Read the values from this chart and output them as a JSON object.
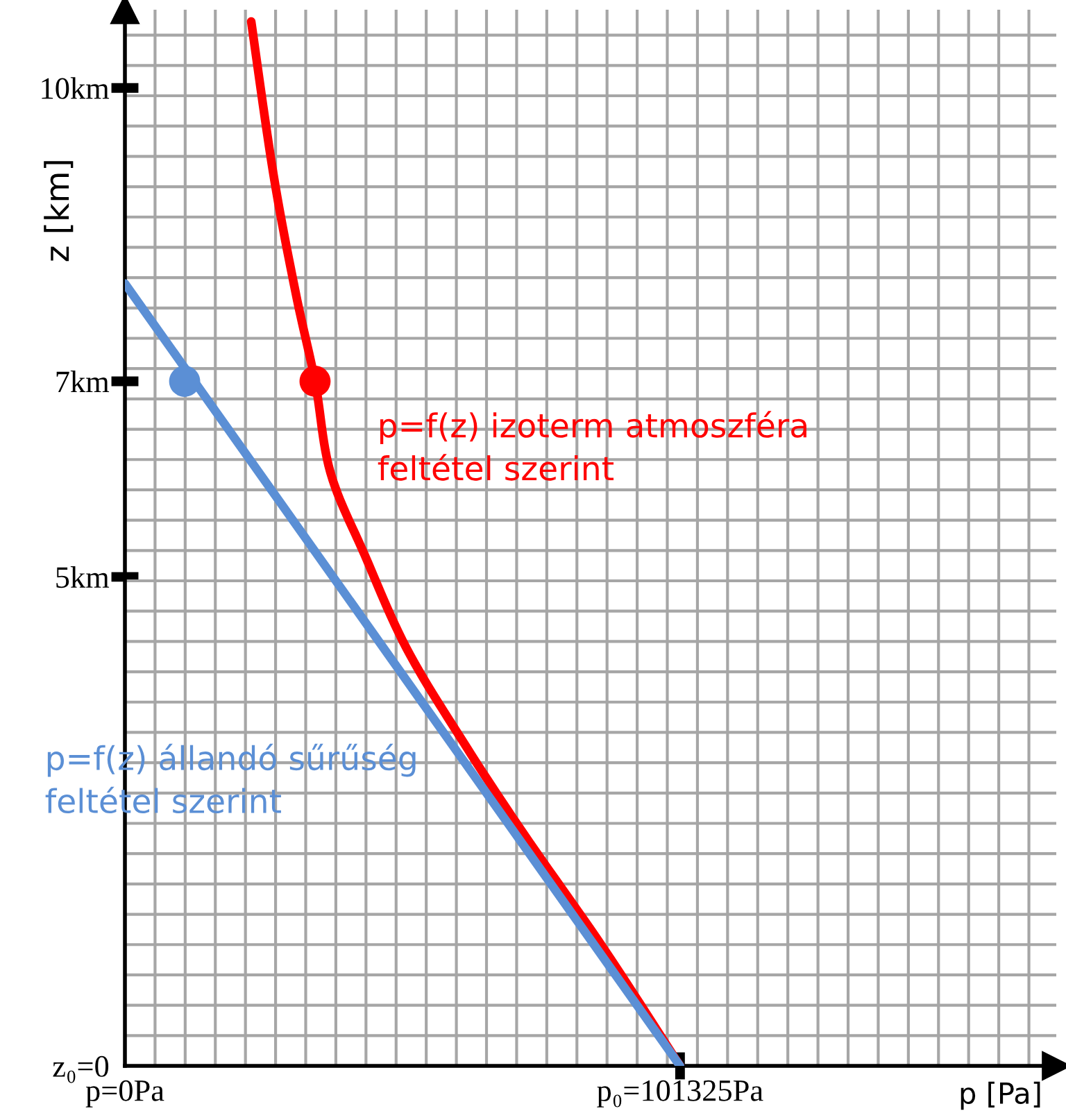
{
  "chart_data": {
    "type": "line",
    "xlabel": "p [Pa]",
    "ylabel": "z [km]",
    "xlim": [
      0,
      170000
    ],
    "ylim": [
      0,
      10.8
    ],
    "xticks": [
      {
        "value": 0,
        "label": "p=0Pa"
      },
      {
        "value": 101325,
        "label": "p₀=101325Pa"
      },
      {
        "value": 5500,
        "label": null
      },
      {
        "value": 11000,
        "label": null
      },
      {
        "value": 16500,
        "label": null
      },
      {
        "value": 22000,
        "label": null
      },
      {
        "value": 27500,
        "label": null
      },
      {
        "value": 33000,
        "label": null
      },
      {
        "value": 38500,
        "label": null
      },
      {
        "value": 44000,
        "label": null
      },
      {
        "value": 49500,
        "label": null
      },
      {
        "value": 55000,
        "label": null
      },
      {
        "value": 60500,
        "label": null
      },
      {
        "value": 66000,
        "label": null
      },
      {
        "value": 71500,
        "label": null
      },
      {
        "value": 77000,
        "label": null
      },
      {
        "value": 82500,
        "label": null
      },
      {
        "value": 88000,
        "label": null
      },
      {
        "value": 93500,
        "label": null
      },
      {
        "value": 99000,
        "label": null
      },
      {
        "value": 104500,
        "label": null
      },
      {
        "value": 110000,
        "label": null
      },
      {
        "value": 115500,
        "label": null
      },
      {
        "value": 121000,
        "label": null
      },
      {
        "value": 126500,
        "label": null
      },
      {
        "value": 132000,
        "label": null
      },
      {
        "value": 137500,
        "label": null
      },
      {
        "value": 143000,
        "label": null
      },
      {
        "value": 148500,
        "label": null
      },
      {
        "value": 154000,
        "label": null
      },
      {
        "value": 159500,
        "label": null
      },
      {
        "value": 165000,
        "label": null
      }
    ],
    "yticks": [
      {
        "value": 0,
        "label": "z₀=0"
      },
      {
        "value": 5,
        "label": "5km"
      },
      {
        "value": 7,
        "label": "7km"
      },
      {
        "value": 10,
        "label": "10km"
      },
      {
        "value": 0.31,
        "label": null
      },
      {
        "value": 0.62,
        "label": null
      },
      {
        "value": 0.93,
        "label": null
      },
      {
        "value": 1.24,
        "label": null
      },
      {
        "value": 1.55,
        "label": null
      },
      {
        "value": 1.86,
        "label": null
      },
      {
        "value": 2.17,
        "label": null
      },
      {
        "value": 2.48,
        "label": null
      },
      {
        "value": 2.79,
        "label": null
      },
      {
        "value": 3.1,
        "label": null
      },
      {
        "value": 3.41,
        "label": null
      },
      {
        "value": 3.72,
        "label": null
      },
      {
        "value": 4.03,
        "label": null
      },
      {
        "value": 4.34,
        "label": null
      },
      {
        "value": 4.65,
        "label": null
      },
      {
        "value": 4.96,
        "label": null
      },
      {
        "value": 5.27,
        "label": null
      },
      {
        "value": 5.58,
        "label": null
      },
      {
        "value": 5.89,
        "label": null
      },
      {
        "value": 6.2,
        "label": null
      },
      {
        "value": 6.51,
        "label": null
      },
      {
        "value": 6.82,
        "label": null
      },
      {
        "value": 7.13,
        "label": null
      },
      {
        "value": 7.44,
        "label": null
      },
      {
        "value": 7.75,
        "label": null
      },
      {
        "value": 8.06,
        "label": null
      },
      {
        "value": 8.37,
        "label": null
      },
      {
        "value": 8.68,
        "label": null
      },
      {
        "value": 8.99,
        "label": null
      },
      {
        "value": 9.3,
        "label": null
      },
      {
        "value": 9.61,
        "label": null
      },
      {
        "value": 9.92,
        "label": null
      },
      {
        "value": 10.23,
        "label": null
      },
      {
        "value": 10.54,
        "label": null
      }
    ],
    "grid": true,
    "line_style": "solid",
    "series": [
      {
        "name": "p=f(z) izoterm atmoszféra\nfeltétel szerint",
        "color": "#ff0000",
        "x": [
          101325,
          87400,
          72700,
          61550,
          51400,
          43800,
          37500,
          34700,
          31150,
          27100,
          23050
        ],
        "values": [
          0,
          1.2,
          2.38,
          3.33,
          4.27,
          5.22,
          6.07,
          7,
          7.91,
          9.12,
          10.68
        ]
      },
      {
        "name": "p=f(z) állandó sűrűség\nfeltétel szerint",
        "color": "#5b8fd5",
        "x": [
          101325,
          0
        ],
        "values": [
          0,
          8
        ]
      },
      {
        "type": "scatter",
        "marker": "circle",
        "color": "#ff0000",
        "x": [
          34700
        ],
        "values": [
          7
        ]
      },
      {
        "type": "scatter",
        "marker": "circle",
        "color": "#5b8fd5",
        "x": [
          10900
        ],
        "values": [
          7
        ]
      }
    ]
  }
}
